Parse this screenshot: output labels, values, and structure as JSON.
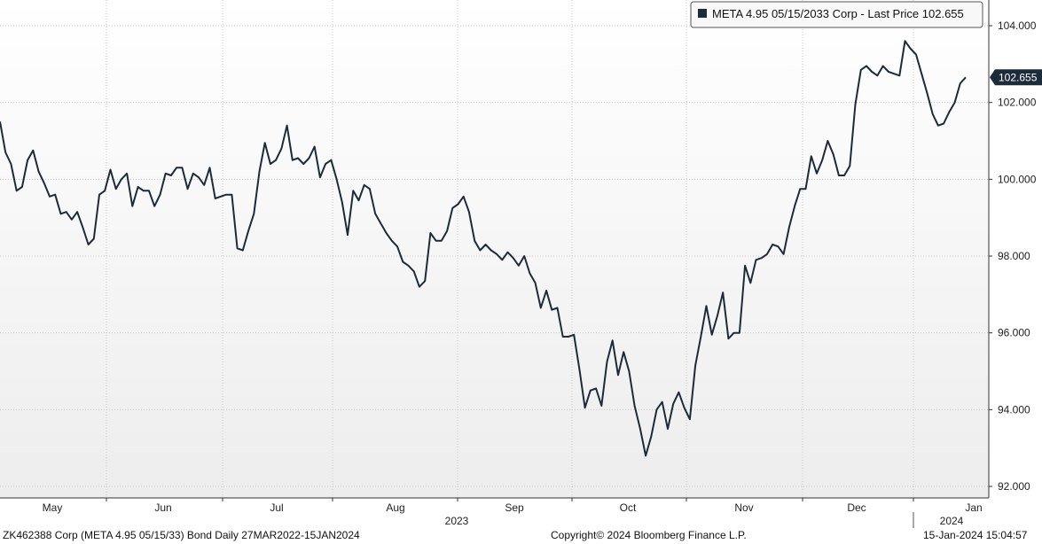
{
  "footer": {
    "left": "ZK462388 Corp (META 4.95 05/15/33) Bond  Daily 27MAR2022-15JAN2024",
    "center": "Copyright© 2024 Bloomberg Finance L.P.",
    "right": "15-Jan-2024 15:04:57"
  },
  "colors": {
    "line": "#1c2b3a",
    "grid": "#c8c8c8",
    "label_bg": "#1c2b3a"
  },
  "chart_data": {
    "type": "line",
    "title": "",
    "legend": {
      "text": "META 4.95 05/15/2033 Corp - Last Price 102.655",
      "placement": "top-right"
    },
    "last_price_label": "102.655",
    "series": [
      {
        "name": "META 4.95 05/15/2033 Corp - Last Price",
        "values": [
          101.5,
          100.7,
          100.4,
          99.7,
          99.8,
          100.5,
          100.75,
          100.2,
          99.9,
          99.55,
          99.6,
          99.1,
          99.15,
          98.95,
          99.15,
          98.75,
          98.3,
          98.45,
          99.6,
          99.7,
          100.25,
          99.75,
          100.0,
          100.15,
          99.3,
          99.8,
          99.7,
          99.7,
          99.3,
          99.6,
          100.15,
          100.1,
          100.3,
          100.3,
          99.75,
          100.15,
          100.05,
          99.85,
          100.3,
          99.5,
          99.55,
          99.6,
          99.6,
          98.2,
          98.15,
          98.65,
          99.1,
          100.2,
          100.95,
          100.4,
          100.5,
          100.8,
          101.4,
          100.5,
          100.55,
          100.4,
          100.55,
          100.85,
          100.05,
          100.4,
          100.5,
          100.0,
          99.4,
          98.55,
          99.7,
          99.45,
          99.85,
          99.75,
          99.1,
          98.85,
          98.6,
          98.4,
          98.25,
          97.85,
          97.75,
          97.6,
          97.2,
          97.35,
          98.6,
          98.4,
          98.4,
          98.65,
          99.25,
          99.35,
          99.55,
          99.15,
          98.4,
          98.15,
          98.3,
          98.15,
          98.05,
          97.9,
          98.1,
          97.95,
          97.75,
          98.0,
          97.55,
          97.3,
          96.65,
          97.1,
          96.6,
          96.65,
          95.9,
          95.9,
          95.95,
          95.05,
          94.05,
          94.5,
          94.55,
          94.1,
          95.25,
          95.8,
          94.9,
          95.5,
          95.0,
          94.1,
          93.5,
          92.8,
          93.3,
          94.0,
          94.2,
          93.5,
          94.15,
          94.45,
          94.05,
          93.75,
          95.15,
          95.9,
          96.7,
          95.95,
          96.45,
          97.05,
          95.85,
          96.0,
          96.0,
          97.75,
          97.3,
          97.9,
          97.95,
          98.05,
          98.3,
          98.25,
          98.05,
          98.75,
          99.3,
          99.75,
          99.75,
          100.6,
          100.15,
          100.5,
          101.0,
          100.65,
          100.1,
          100.1,
          100.35,
          101.95,
          102.85,
          102.95,
          102.8,
          102.7,
          102.95,
          102.8,
          102.75,
          102.7,
          103.6,
          103.4,
          103.25,
          102.75,
          102.25,
          101.7,
          101.4,
          101.45,
          101.75,
          102.0,
          102.5,
          102.655
        ]
      }
    ],
    "x_labels": [
      "May",
      "Jun",
      "Jul",
      "Aug",
      "Sep",
      "Oct",
      "Nov",
      "Dec",
      "Jan"
    ],
    "year_labels": [
      "2023",
      "2024"
    ],
    "y_ticks": [
      "92.000",
      "94.000",
      "96.000",
      "98.000",
      "100.000",
      "102.000",
      "104.000"
    ],
    "ylim": [
      91.8,
      104.6
    ],
    "grid": true,
    "xlabel": "",
    "ylabel": ""
  }
}
